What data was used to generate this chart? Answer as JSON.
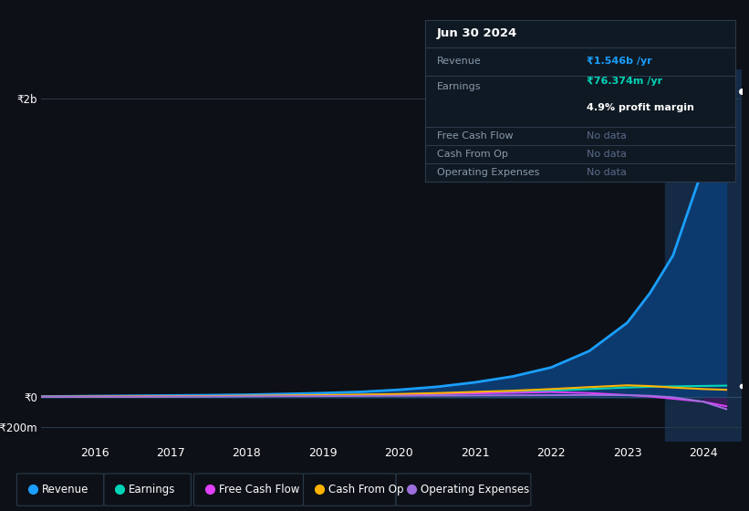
{
  "background_color": "#0d1117",
  "plot_bg_color": "#0d1117",
  "grid_color": "#2a3a4a",
  "text_color": "#ffffff",
  "label_color": "#8899aa",
  "years": [
    2015.3,
    2015.6,
    2016,
    2016.5,
    2017,
    2017.5,
    2018,
    2018.5,
    2019,
    2019.5,
    2020,
    2020.5,
    2021,
    2021.5,
    2022,
    2022.5,
    2023,
    2023.3,
    2023.6,
    2024,
    2024.3
  ],
  "revenue": [
    5,
    6,
    8,
    10,
    12,
    14,
    17,
    22,
    28,
    36,
    50,
    70,
    100,
    140,
    200,
    310,
    500,
    700,
    950,
    1546,
    2050
  ],
  "earnings": [
    2,
    2,
    3,
    4,
    5,
    6,
    7,
    9,
    11,
    14,
    18,
    22,
    28,
    35,
    45,
    55,
    65,
    70,
    73,
    76,
    78
  ],
  "free_cash_flow": [
    3,
    3,
    4,
    5,
    6,
    7,
    8,
    10,
    12,
    15,
    18,
    22,
    26,
    30,
    35,
    28,
    15,
    5,
    -10,
    -30,
    -60
  ],
  "cash_from_op": [
    4,
    4,
    5,
    6,
    7,
    8,
    10,
    12,
    15,
    18,
    22,
    28,
    36,
    44,
    55,
    68,
    80,
    75,
    65,
    55,
    50
  ],
  "operating_expenses": [
    3,
    3,
    4,
    4,
    5,
    5,
    6,
    7,
    8,
    9,
    10,
    11,
    12,
    13,
    14,
    15,
    14,
    10,
    0,
    -30,
    -80
  ],
  "revenue_color": "#1a9fff",
  "revenue_fill": "#0d3a6e",
  "earnings_color": "#00d4b8",
  "free_cash_flow_color": "#e040fb",
  "cash_from_op_color": "#ffb300",
  "operating_expenses_color": "#9c6fdc",
  "operating_expenses_fill": "#3d1a5c",
  "ylim": [
    -300,
    2200
  ],
  "ytick_vals": [
    -200,
    0,
    2000
  ],
  "ytick_labels": [
    "-₹200m",
    "₹0",
    "₹2b"
  ],
  "xtick_years": [
    2016,
    2017,
    2018,
    2019,
    2020,
    2021,
    2022,
    2023,
    2024
  ],
  "info_title": "Jun 30 2024",
  "info_revenue_label": "Revenue",
  "info_revenue_val": "₹1.546b /yr",
  "info_earnings_label": "Earnings",
  "info_earnings_val": "₹76.374m /yr",
  "info_margin": "4.9% profit margin",
  "info_fcf_label": "Free Cash Flow",
  "info_fcf_val": "No data",
  "info_cfop_label": "Cash From Op",
  "info_cfop_val": "No data",
  "info_opex_label": "Operating Expenses",
  "info_opex_val": "No data",
  "highlight_start": 2023.5,
  "highlight_color": "#152a45",
  "legend_items": [
    "Revenue",
    "Earnings",
    "Free Cash Flow",
    "Cash From Op",
    "Operating Expenses"
  ],
  "legend_colors": [
    "#1a9fff",
    "#00d4b8",
    "#e040fb",
    "#ffb300",
    "#9c6fdc"
  ]
}
